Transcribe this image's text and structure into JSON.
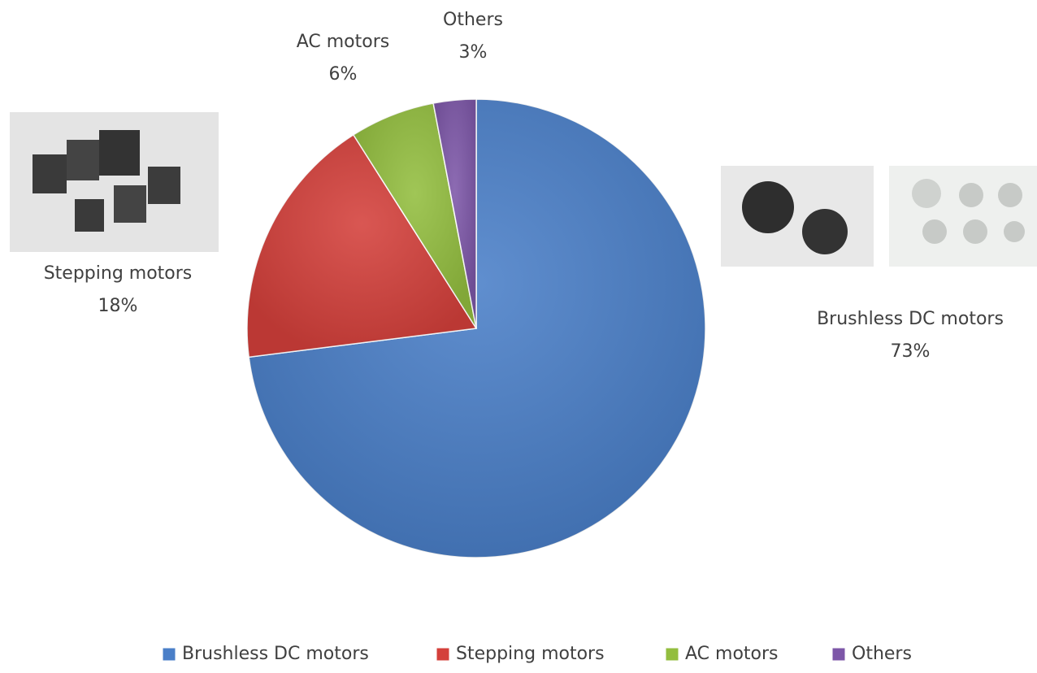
{
  "chart_data": {
    "type": "pie",
    "categories": [
      "Brushless DC motors",
      "Stepping motors",
      "AC motors",
      "Others"
    ],
    "values": [
      73,
      18,
      6,
      3
    ],
    "value_labels": [
      "73%",
      "18%",
      "6%",
      "3%"
    ],
    "colors": [
      "#4a7fc8",
      "#d4403b",
      "#93be3f",
      "#7d57a8"
    ],
    "legend": "bottom"
  }
}
